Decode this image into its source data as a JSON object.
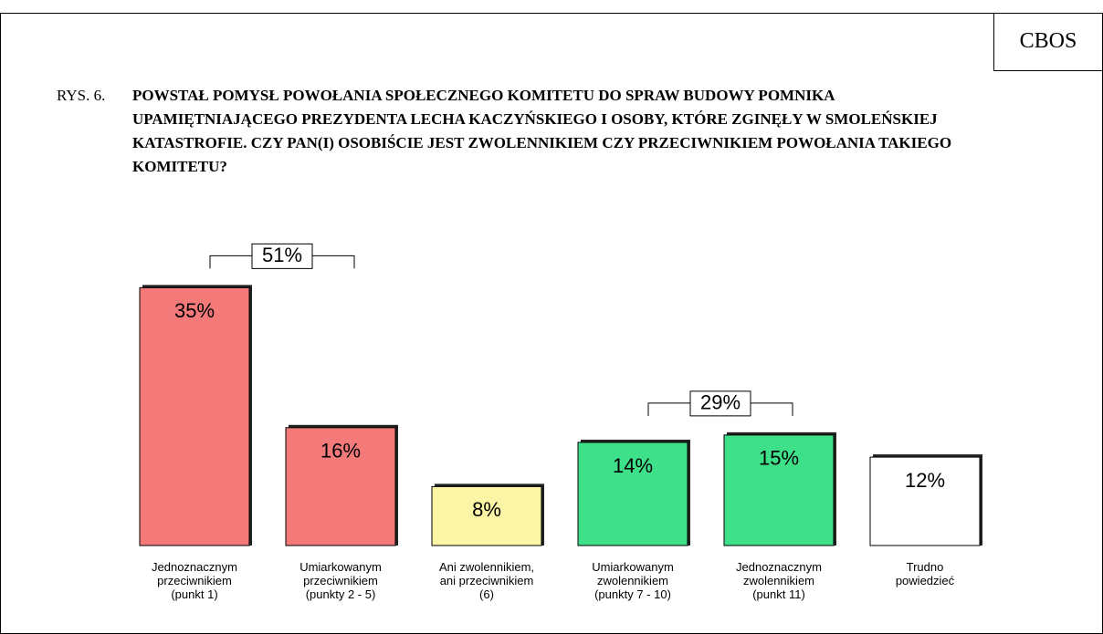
{
  "chart_data": {
    "type": "bar",
    "source": "CBOS",
    "figure_label": "RYS. 6.",
    "title": "POWSTAŁ POMYSŁ POWOŁANIA SPOŁECZNEGO KOMITETU DO SPRAW BUDOWY POMNIKA UPAMIĘTNIAJĄCEGO PREZYDENTA LECHA KACZYŃSKIEGO I OSOBY, KTÓRE ZGINĘŁY W SMOLEŃSKIEJ KATASTROFIE. CZY PAN(I) OSOBIŚCIE  JEST ZWOLENNIKIEM CZY PRZECIWNIKIEM POWOŁANIA TAKIEGO KOMITETU?",
    "categories": [
      "Jednoznacznym\nprzeciwnikiem\n(punkt 1)",
      "Umiarkowanym\nprzeciwnikiem\n(punkty 2 - 5)",
      "Ani zwolennikiem,\nani przeciwnikiem\n(6)",
      "Umiarkowanym\nzwolennikiem\n(punkty 7 - 10)",
      "Jednoznacznym\nzwolennikiem\n(punkt 11)",
      "Trudno\npowiedzieć"
    ],
    "values": [
      35,
      16,
      8,
      14,
      15,
      12
    ],
    "value_labels": [
      "35%",
      "16%",
      "8%",
      "14%",
      "15%",
      "12%"
    ],
    "colors": [
      "#f47a7a",
      "#f47a7a",
      "#fdf5a6",
      "#3ee08a",
      "#3ee08a",
      "#ffffff"
    ],
    "ylim": [
      0,
      40
    ],
    "groups": [
      {
        "label": "51%",
        "value": 51,
        "categories": [
          0,
          1
        ]
      },
      {
        "label": "29%",
        "value": 29,
        "categories": [
          3,
          4
        ]
      }
    ]
  }
}
